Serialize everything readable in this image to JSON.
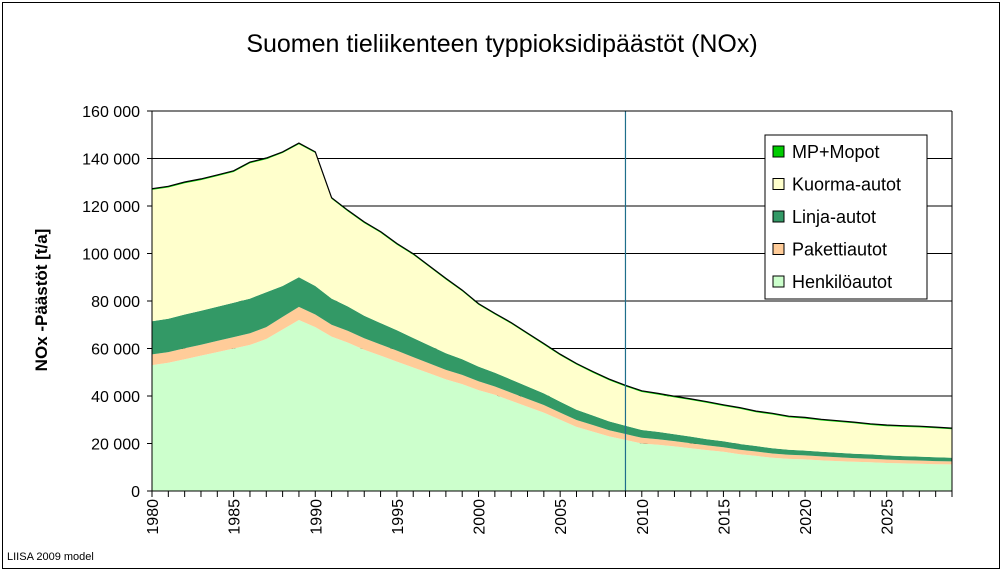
{
  "chart_data": {
    "type": "area",
    "stacked": true,
    "title": "Suomen tieliikenteen typpioksidipäästöt (NOx)",
    "ylabel": "NOx -Päästöt [t/a]",
    "xlabel": "",
    "source_note": "LIISA 2009 model",
    "x": [
      1980,
      1981,
      1982,
      1983,
      1984,
      1985,
      1986,
      1987,
      1988,
      1989,
      1990,
      1991,
      1992,
      1993,
      1994,
      1995,
      1996,
      1997,
      1998,
      1999,
      2000,
      2001,
      2002,
      2003,
      2004,
      2005,
      2006,
      2007,
      2008,
      2009,
      2010,
      2011,
      2012,
      2013,
      2014,
      2015,
      2016,
      2017,
      2018,
      2019,
      2020,
      2021,
      2022,
      2023,
      2024,
      2025,
      2026,
      2027,
      2028,
      2029
    ],
    "xlim": [
      1980,
      2029
    ],
    "ylim": [
      0,
      160000
    ],
    "yticks": [
      "0",
      "20 000",
      "40 000",
      "60 000",
      "80 000",
      "100 000",
      "120 000",
      "140 000",
      "160 000"
    ],
    "xticks": [
      1980,
      1985,
      1990,
      1995,
      2000,
      2005,
      2010,
      2015,
      2020,
      2025
    ],
    "vline_x": 2009,
    "grid": "horizontal",
    "legend_position": "top-right",
    "series": [
      {
        "name": "Henkilöautot",
        "color": "#ccffcc",
        "values": [
          53000,
          54000,
          55500,
          57000,
          58500,
          60000,
          61500,
          64000,
          68000,
          72000,
          69000,
          65000,
          62500,
          59500,
          57000,
          54500,
          52000,
          49500,
          47000,
          45000,
          42500,
          40500,
          38000,
          35500,
          33000,
          30000,
          27000,
          25000,
          23000,
          21500,
          20000,
          19500,
          18800,
          18000,
          17200,
          16500,
          15500,
          14800,
          14000,
          13500,
          13300,
          12900,
          12600,
          12300,
          12100,
          11800,
          11600,
          11500,
          11300,
          11200
        ]
      },
      {
        "name": "Pakettiautot",
        "color": "#ffcc99",
        "values": [
          4500,
          4500,
          4600,
          4600,
          4700,
          4800,
          4900,
          5000,
          5300,
          5500,
          5300,
          5000,
          4900,
          4800,
          4700,
          4600,
          4400,
          4200,
          4000,
          3900,
          3700,
          3500,
          3400,
          3300,
          3200,
          3000,
          2900,
          2800,
          2600,
          2500,
          2400,
          2300,
          2200,
          2100,
          2000,
          1950,
          1900,
          1850,
          1800,
          1750,
          1700,
          1650,
          1600,
          1550,
          1500,
          1450,
          1400,
          1350,
          1300,
          1250
        ]
      },
      {
        "name": "Linja-autot",
        "color": "#339966",
        "values": [
          14000,
          14000,
          14200,
          14300,
          14400,
          14500,
          14600,
          14700,
          13000,
          12500,
          12000,
          11000,
          10300,
          9500,
          9000,
          8600,
          8000,
          7500,
          7000,
          6600,
          6200,
          5800,
          5500,
          5200,
          4900,
          4600,
          4300,
          4000,
          3700,
          3500,
          3300,
          3100,
          2900,
          2800,
          2600,
          2500,
          2400,
          2300,
          2200,
          2100,
          2000,
          1950,
          1900,
          1850,
          1800,
          1750,
          1700,
          1650,
          1600,
          1550
        ]
      },
      {
        "name": "Kuorma-autot",
        "color": "#ffffcc",
        "values": [
          55300,
          55300,
          55300,
          55000,
          55000,
          55000,
          57000,
          56000,
          56000,
          56000,
          56000,
          42000,
          40000,
          39000,
          38000,
          36000,
          35000,
          33000,
          31000,
          28600,
          26000,
          24500,
          23500,
          22000,
          20500,
          19500,
          19000,
          18000,
          17300,
          16500,
          16000,
          15700,
          15500,
          15400,
          15300,
          14850,
          14800,
          14200,
          14200,
          13650,
          13500,
          13200,
          13000,
          12800,
          12400,
          12300,
          12300,
          12300,
          12200,
          12000
        ]
      },
      {
        "name": "MP+Mopot",
        "color": "#00cc00",
        "values": [
          500,
          500,
          500,
          500,
          500,
          500,
          500,
          500,
          500,
          500,
          500,
          500,
          500,
          500,
          500,
          500,
          500,
          500,
          500,
          500,
          500,
          500,
          500,
          500,
          500,
          500,
          500,
          500,
          500,
          500,
          500,
          500,
          500,
          500,
          500,
          500,
          500,
          500,
          500,
          500,
          500,
          500,
          500,
          500,
          500,
          500,
          500,
          500,
          500,
          500
        ]
      }
    ]
  }
}
